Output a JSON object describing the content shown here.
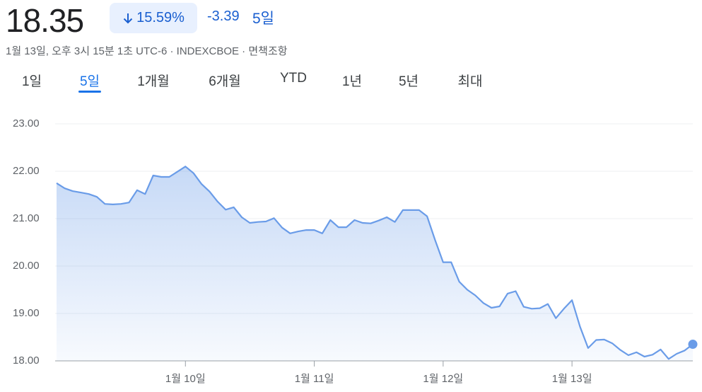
{
  "header": {
    "price": "18.35",
    "change_percent": "15.59%",
    "change": "-3.39",
    "period": "5일",
    "subtitle": "1월 13일, 오후 3시 15분 1초 UTC-6 · INDEXCBOE · 면책조항"
  },
  "tabs": {
    "items": [
      "1일",
      "5일",
      "1개월",
      "6개월",
      "YTD",
      "1년",
      "5년",
      "최대"
    ],
    "selected": 1
  },
  "chart_data": {
    "type": "area",
    "color": "#6a9ce8",
    "x": [
      0,
      1,
      2,
      3,
      4,
      5,
      6,
      7,
      8,
      9,
      10,
      11,
      12,
      13,
      14,
      15,
      16,
      17,
      18,
      19,
      20,
      21,
      22,
      23,
      24,
      25,
      26,
      27,
      28,
      29,
      30,
      31,
      32,
      33,
      34,
      35,
      36,
      37,
      38,
      39,
      40,
      41,
      42,
      43,
      44,
      45,
      46,
      47,
      48,
      49,
      50,
      51,
      52,
      53,
      54,
      55,
      56,
      57,
      58,
      59,
      60,
      61,
      62,
      63,
      64,
      65,
      66,
      67,
      68,
      69,
      70,
      71,
      72,
      73,
      74,
      75,
      76,
      77,
      78,
      79
    ],
    "values": [
      21.75,
      21.64,
      21.58,
      21.55,
      21.52,
      21.46,
      21.31,
      21.3,
      21.31,
      21.34,
      21.6,
      21.52,
      21.91,
      21.88,
      21.88,
      21.99,
      22.1,
      21.96,
      21.73,
      21.57,
      21.36,
      21.19,
      21.24,
      21.03,
      20.91,
      20.93,
      20.94,
      21.01,
      20.81,
      20.69,
      20.73,
      20.76,
      20.76,
      20.69,
      20.97,
      20.82,
      20.82,
      20.97,
      20.91,
      20.9,
      20.96,
      21.03,
      20.93,
      21.18,
      21.18,
      21.18,
      21.05,
      20.55,
      20.08,
      20.08,
      19.67,
      19.5,
      19.38,
      19.22,
      19.12,
      19.15,
      19.42,
      19.47,
      19.14,
      19.1,
      19.11,
      19.2,
      18.9,
      19.1,
      19.28,
      18.72,
      18.27,
      18.44,
      18.45,
      18.37,
      18.23,
      18.12,
      18.18,
      18.09,
      18.13,
      18.24,
      18.04,
      18.15,
      18.22,
      18.35
    ],
    "xlim": [
      0,
      79
    ],
    "xticks": [
      {
        "value": 16,
        "label": "1월 10일"
      },
      {
        "value": 32,
        "label": "1월 11일"
      },
      {
        "value": 48,
        "label": "1월 12일"
      },
      {
        "value": 64,
        "label": "1월 13일"
      }
    ],
    "ylim": [
      18,
      23
    ],
    "yticks": [
      {
        "value": 18,
        "label": "18.00"
      },
      {
        "value": 19,
        "label": "19.00"
      },
      {
        "value": 20,
        "label": "20.00"
      },
      {
        "value": 21,
        "label": "21.00"
      },
      {
        "value": 22,
        "label": "22.00"
      },
      {
        "value": 23,
        "label": "23.00"
      }
    ],
    "grid": true
  }
}
